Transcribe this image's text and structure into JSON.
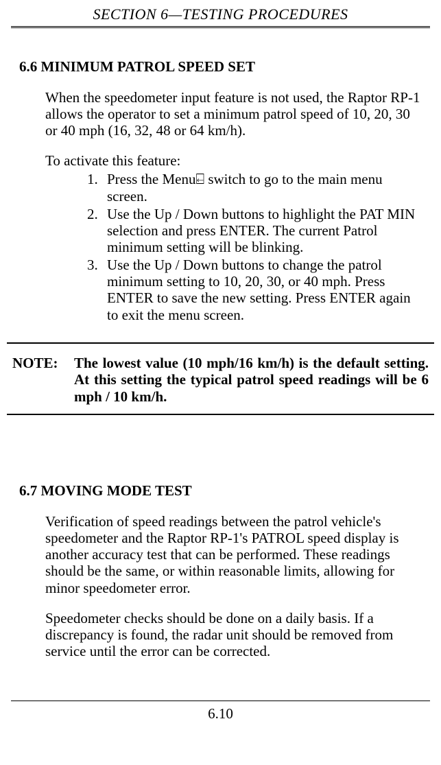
{
  "header": {
    "title": "SECTION 6—TESTING PROCEDURES"
  },
  "section66": {
    "heading": "6.6 MINIMUM PATROL SPEED SET",
    "para1": "When the speedometer input feature is not used, the Raptor RP-1 allows the operator to set a minimum patrol speed of 10, 20, 30 or 40 mph (16, 32, 48 or 64 km/h).",
    "list_intro": "To activate this feature:",
    "steps": [
      "Press the Menu⍇ switch to go to the main menu screen.",
      "Use the Up / Down buttons to highlight the PAT MIN selection and press ENTER.  The current Patrol minimum setting will be blinking.",
      "Use the Up / Down buttons to change the patrol minimum setting to 10, 20, 30, or 40 mph. Press ENTER to save the new setting. Press ENTER again to exit the menu screen."
    ]
  },
  "note": {
    "label": "NOTE:",
    "text": "The lowest value (10 mph/16 km/h) is the default setting.  At this setting the typical patrol speed readings will be 6 mph / 10 km/h."
  },
  "section67": {
    "heading": "6.7 MOVING MODE TEST",
    "para1": "Verification of speed readings between the patrol vehicle's speedometer and the Raptor RP-1's PATROL speed display is another accuracy test that can be performed. These readings should be the same, or within reasonable limits, allowing for minor speedometer error.",
    "para2": "Speedometer checks should be done on a daily basis. If a discrepancy is found, the radar unit should be removed from service until the error can be corrected."
  },
  "footer": {
    "page_number": "6.10"
  }
}
